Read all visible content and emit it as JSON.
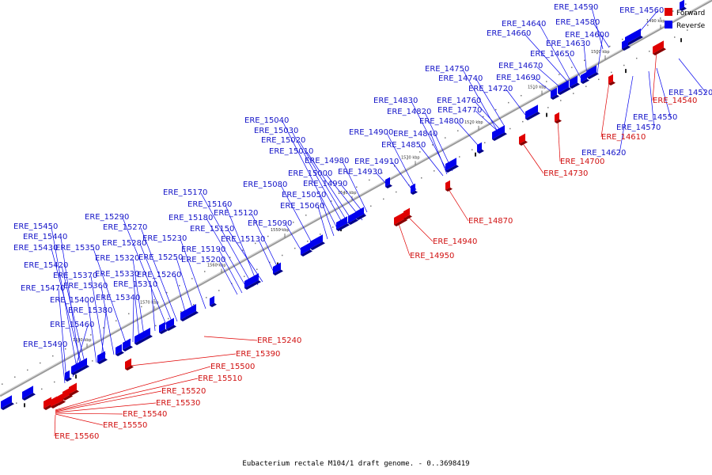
{
  "caption": "Eubacterium rectale M104/1 draft genome. - 0..3698419",
  "legend": {
    "forward_label": "Forward",
    "reverse_label": "Reverse",
    "forward_color": "#e00000",
    "reverse_color": "#0000ee"
  },
  "ticks": [
    "1490 kbp",
    "1500 kbp",
    "1510 kbp",
    "1520 kbp",
    "1530 kbp",
    "1540 kbp",
    "1550 kbp",
    "1560 kbp",
    "1570 kbp",
    "1580 kbp"
  ],
  "reverse_genes": [
    "ERE_14520",
    "ERE_14550",
    "ERE_14560",
    "ERE_14570",
    "ERE_14580",
    "ERE_14590",
    "ERE_14600",
    "ERE_14620",
    "ERE_14630",
    "ERE_14640",
    "ERE_14650",
    "ERE_14660",
    "ERE_14670",
    "ERE_14690",
    "ERE_14720",
    "ERE_14740",
    "ERE_14750",
    "ERE_14760",
    "ERE_14770",
    "ERE_14800",
    "ERE_14820",
    "ERE_14830",
    "ERE_14840",
    "ERE_14850",
    "ERE_14900",
    "ERE_14910",
    "ERE_14930",
    "ERE_14980",
    "ERE_14990",
    "ERE_15000",
    "ERE_15010",
    "ERE_15020",
    "ERE_15030",
    "ERE_15040",
    "ERE_15050",
    "ERE_15060",
    "ERE_15080",
    "ERE_15090",
    "ERE_15120",
    "ERE_15130",
    "ERE_15150",
    "ERE_15160",
    "ERE_15170",
    "ERE_15180",
    "ERE_15190",
    "ERE_15200",
    "ERE_15230",
    "ERE_15250",
    "ERE_15260",
    "ERE_15270",
    "ERE_15280",
    "ERE_15290",
    "ERE_15310",
    "ERE_15320",
    "ERE_15330",
    "ERE_15340",
    "ERE_15350",
    "ERE_15360",
    "ERE_15370",
    "ERE_15380",
    "ERE_15400",
    "ERE_15420",
    "ERE_15430",
    "ERE_15440",
    "ERE_15450",
    "ERE_15460",
    "ERE_15470",
    "ERE_15490"
  ],
  "forward_genes": [
    "ERE_14540",
    "ERE_14610",
    "ERE_14700",
    "ERE_14730",
    "ERE_14870",
    "ERE_14940",
    "ERE_14950",
    "ERE_15240",
    "ERE_15390",
    "ERE_15500",
    "ERE_15510",
    "ERE_15520",
    "ERE_15530",
    "ERE_15540",
    "ERE_15550",
    "ERE_15560"
  ]
}
